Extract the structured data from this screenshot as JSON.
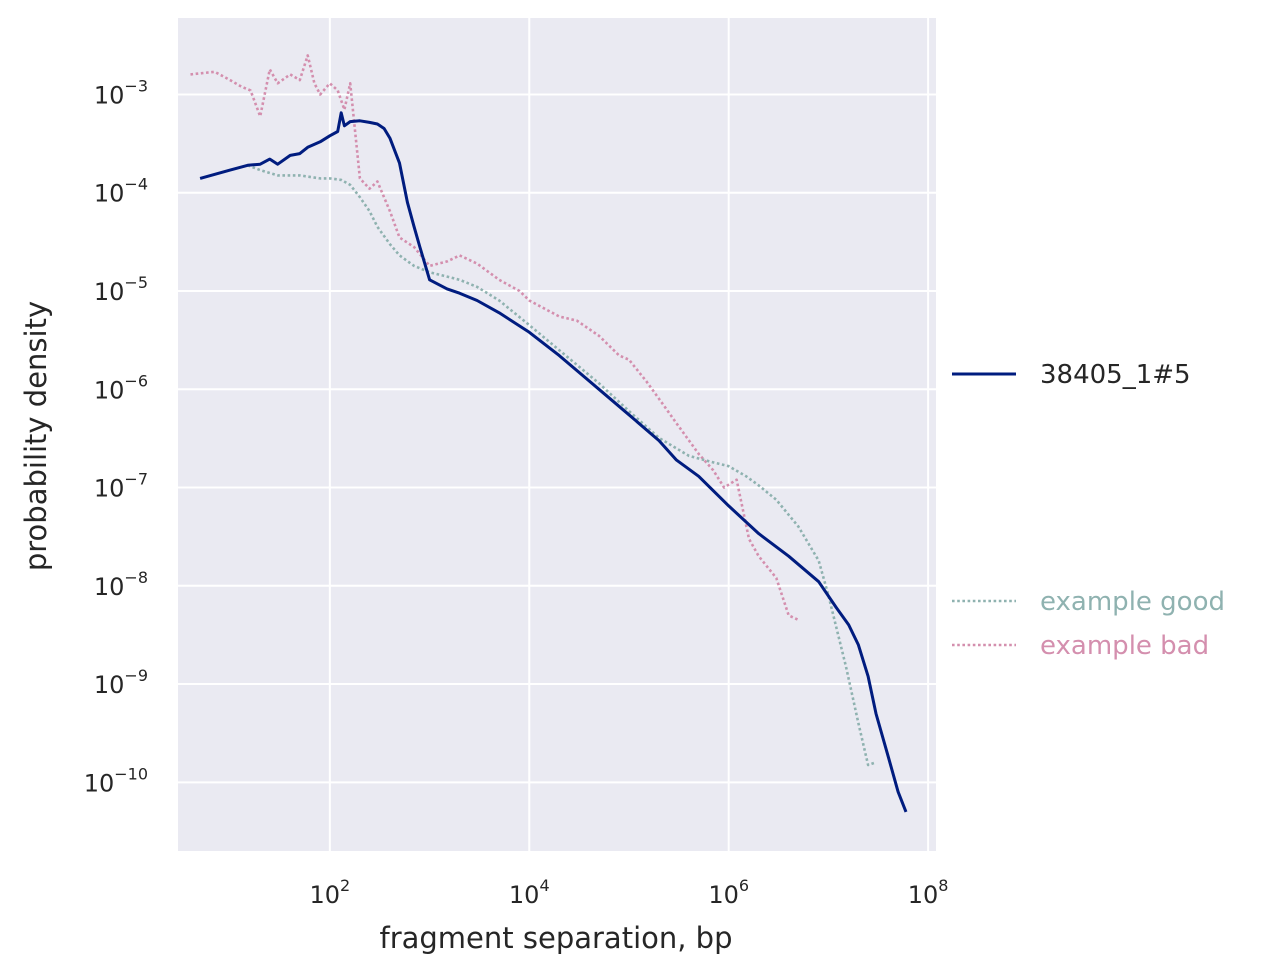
{
  "chart_data": {
    "type": "line",
    "xscale": "log",
    "yscale": "log",
    "xlabel": "fragment separation, bp",
    "ylabel": "probability density",
    "xlim": [
      3.0,
      120000000
    ],
    "ylim": [
      2e-11,
      0.006
    ],
    "xticks": [
      {
        "base": "10",
        "exp": "2",
        "value": 100
      },
      {
        "base": "10",
        "exp": "4",
        "value": 10000
      },
      {
        "base": "10",
        "exp": "6",
        "value": 1000000
      },
      {
        "base": "10",
        "exp": "8",
        "value": 100000000
      }
    ],
    "yticks": [
      {
        "base": "10",
        "exp": "−3",
        "value": 0.001
      },
      {
        "base": "10",
        "exp": "−4",
        "value": 0.0001
      },
      {
        "base": "10",
        "exp": "−5",
        "value": 1e-05
      },
      {
        "base": "10",
        "exp": "−6",
        "value": 1e-06
      },
      {
        "base": "10",
        "exp": "−7",
        "value": 1e-07
      },
      {
        "base": "10",
        "exp": "−8",
        "value": 1e-08
      },
      {
        "base": "10",
        "exp": "−9",
        "value": 1e-09
      },
      {
        "base": "10",
        "exp": "−10",
        "value": 1e-10
      }
    ],
    "grid": true,
    "legend_position": "right",
    "series": [
      {
        "name": "38405_1#5",
        "color": "#001c7f",
        "style": "solid",
        "x": [
          5,
          10,
          15,
          20,
          25,
          30,
          40,
          50,
          60,
          80,
          100,
          120,
          130,
          140,
          160,
          200,
          250,
          300,
          350,
          400,
          500,
          600,
          700,
          800,
          1000,
          1500,
          2000,
          3000,
          5000,
          10000,
          20000,
          50000,
          100000,
          200000,
          300000,
          500000,
          1000000,
          2000000,
          4000000,
          8000000,
          12000000,
          16000000,
          20000000,
          25000000,
          30000000,
          40000000,
          50000000,
          60000000
        ],
        "y": [
          0.00014,
          0.00017,
          0.00019,
          0.000195,
          0.00022,
          0.000195,
          0.00024,
          0.00025,
          0.00029,
          0.00033,
          0.00038,
          0.00042,
          0.00065,
          0.00048,
          0.00053,
          0.00054,
          0.00052,
          0.0005,
          0.00045,
          0.00036,
          0.0002,
          8e-05,
          4.5e-05,
          2.8e-05,
          1.3e-05,
          1.05e-05,
          9.5e-06,
          8e-06,
          6e-06,
          3.8e-06,
          2.2e-06,
          1e-06,
          5.5e-07,
          3e-07,
          1.9e-07,
          1.3e-07,
          6.5e-08,
          3.4e-08,
          2e-08,
          1.1e-08,
          6e-09,
          4e-09,
          2.5e-09,
          1.2e-09,
          5e-10,
          1.8e-10,
          8e-11,
          5e-11
        ]
      },
      {
        "name": "example good",
        "color": "#8fb2b0",
        "style": "dotted",
        "x": [
          15,
          20,
          30,
          50,
          80,
          100,
          130,
          160,
          200,
          250,
          300,
          400,
          500,
          700,
          1000,
          1500,
          2000,
          3000,
          5000,
          10000,
          20000,
          50000,
          100000,
          200000,
          400000,
          700000,
          1000000,
          1500000,
          2000000,
          3000000,
          5000000,
          8000000,
          10000000,
          15000000,
          20000000,
          25000000,
          30000000
        ],
        "y": [
          0.00019,
          0.00017,
          0.00015,
          0.00015,
          0.00014,
          0.00014,
          0.000135,
          0.00012,
          9e-05,
          6.5e-05,
          4.5e-05,
          3e-05,
          2.3e-05,
          1.8e-05,
          1.55e-05,
          1.4e-05,
          1.3e-05,
          1.1e-05,
          8e-06,
          4.5e-06,
          2.5e-06,
          1.15e-06,
          6e-07,
          3.2e-07,
          2.1e-07,
          1.8e-07,
          1.65e-07,
          1.3e-07,
          1.05e-07,
          7.5e-08,
          4e-08,
          1.8e-08,
          8e-09,
          1.5e-09,
          4e-10,
          1.5e-10,
          1.6e-10
        ]
      },
      {
        "name": "example bad",
        "color": "#d48fae",
        "style": "dotted",
        "x": [
          4,
          7,
          10,
          13,
          16,
          20,
          25,
          30,
          40,
          50,
          60,
          70,
          80,
          100,
          120,
          140,
          160,
          200,
          250,
          300,
          400,
          500,
          700,
          1000,
          1500,
          2000,
          3000,
          5000,
          8000,
          10000,
          20000,
          30000,
          50000,
          80000,
          100000,
          150000,
          200000,
          300000,
          500000,
          700000,
          900000,
          1200000,
          1600000,
          2000000,
          3000000,
          4000000,
          5000000
        ],
        "y": [
          0.0016,
          0.0017,
          0.0014,
          0.0012,
          0.0011,
          0.0006,
          0.0018,
          0.0013,
          0.0016,
          0.0014,
          0.0025,
          0.0013,
          0.001,
          0.0013,
          0.0011,
          0.0007,
          0.0013,
          0.00014,
          0.00011,
          0.00013,
          6.5e-05,
          3.5e-05,
          2.8e-05,
          1.8e-05,
          2e-05,
          2.3e-05,
          1.9e-05,
          1.3e-05,
          1e-05,
          8e-06,
          5.5e-06,
          5e-06,
          3.5e-06,
          2.2e-06,
          2e-06,
          1.2e-06,
          8e-07,
          4.5e-07,
          2.2e-07,
          1.5e-07,
          1e-07,
          1.2e-07,
          3e-08,
          2e-08,
          1.2e-08,
          5e-09,
          4.5e-09
        ]
      }
    ]
  }
}
